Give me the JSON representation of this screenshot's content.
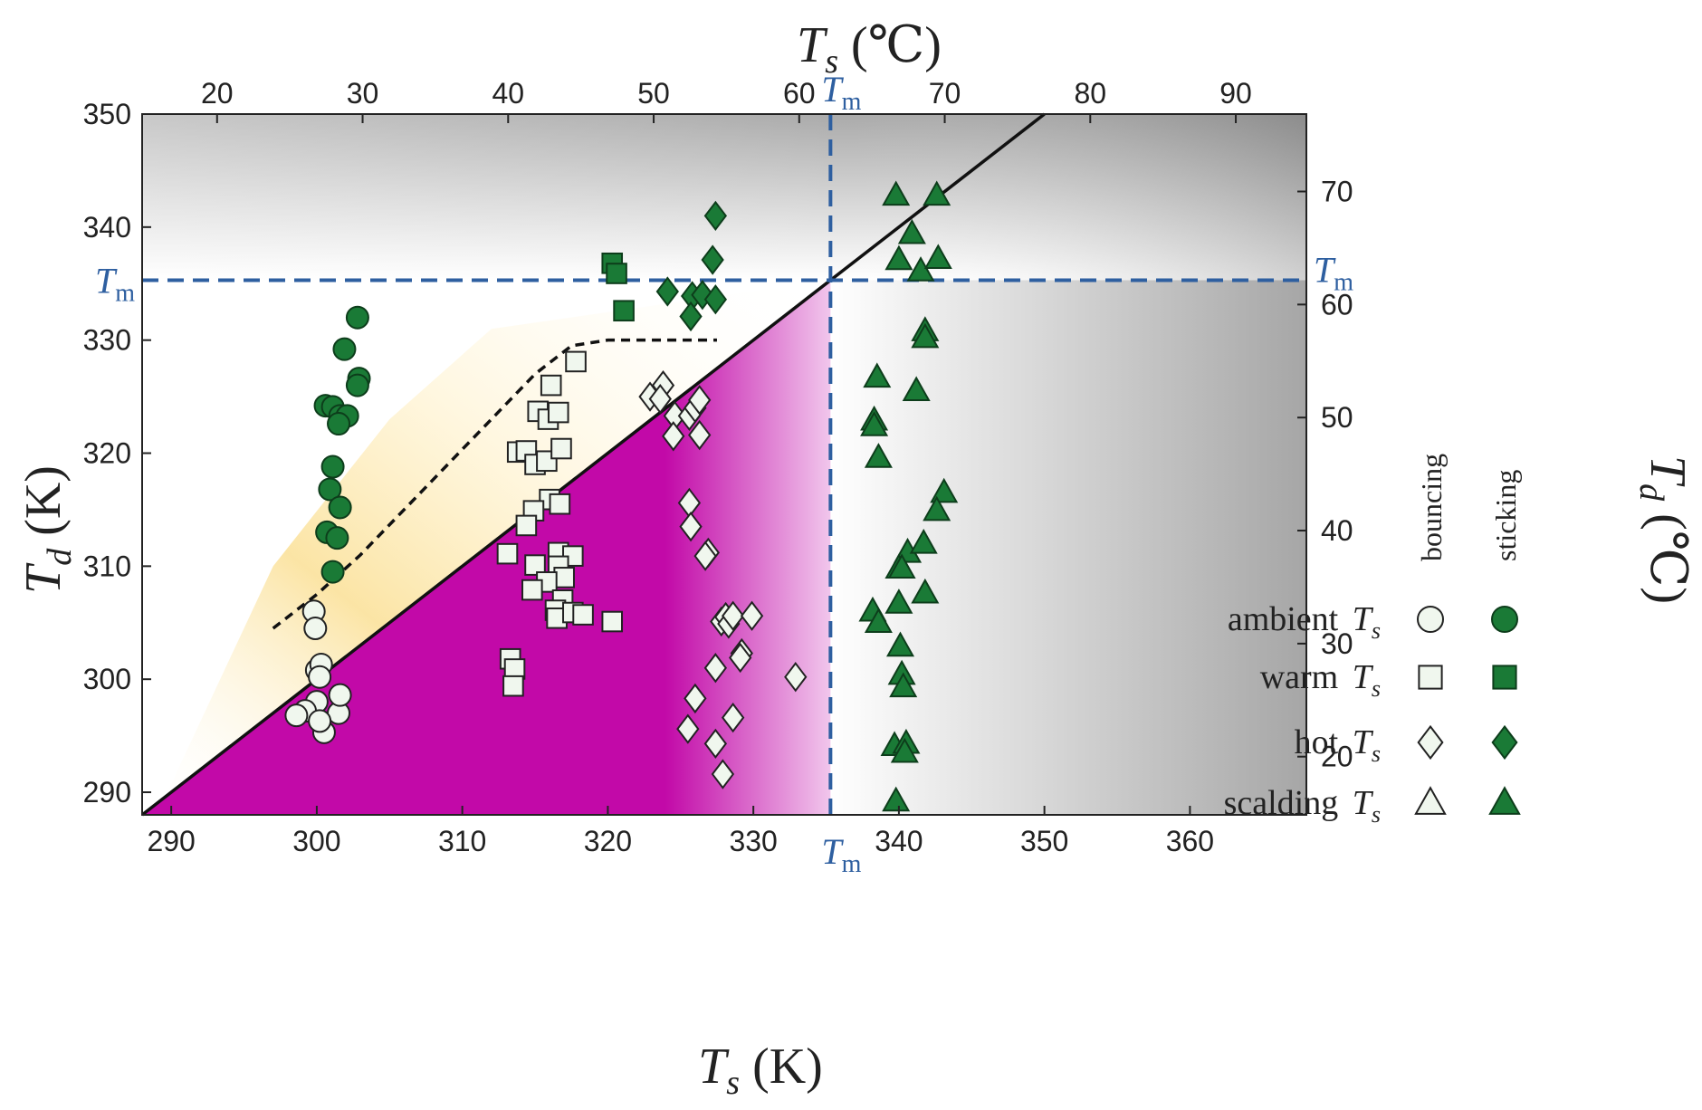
{
  "chart_data": {
    "type": "scatter",
    "axes": {
      "x_bottom": {
        "label_symbol": "T",
        "label_sub": "s",
        "label_unit": "(K)",
        "lim": [
          288,
          368
        ],
        "ticks": [
          290,
          300,
          310,
          320,
          330,
          340,
          350,
          360
        ]
      },
      "x_top": {
        "label_symbol": "T",
        "label_sub": "s",
        "label_unit": "(℃)",
        "lim": [
          14.85,
          94.85
        ],
        "ticks": [
          20,
          30,
          40,
          50,
          60,
          70,
          80,
          90
        ]
      },
      "y_left": {
        "label_symbol": "T",
        "label_sub": "d",
        "label_unit": "(K)",
        "lim": [
          288,
          350
        ],
        "ticks": [
          290,
          300,
          310,
          320,
          330,
          340,
          350
        ]
      },
      "y_right": {
        "label_symbol": "T",
        "label_sub": "d",
        "label_unit": "(℃)",
        "lim": [
          14.85,
          76.85
        ],
        "ticks": [
          20,
          30,
          40,
          50,
          60,
          70
        ]
      }
    },
    "melting": {
      "value": 335.3,
      "label_main": "T",
      "label_sub": "m"
    },
    "diagonal": {
      "from": [
        288,
        288
      ],
      "to": [
        350,
        350
      ]
    },
    "dashed_curve": [
      [
        297,
        304.5
      ],
      [
        300,
        307.5
      ],
      [
        303,
        311
      ],
      [
        306,
        315
      ],
      [
        309,
        319
      ],
      [
        312,
        323
      ],
      [
        315,
        327
      ],
      [
        317.5,
        329.5
      ],
      [
        320,
        330
      ],
      [
        324,
        330
      ],
      [
        327.5,
        330
      ]
    ],
    "legend": {
      "col_bouncing": "bouncing",
      "col_sticking": "sticking",
      "rows": [
        {
          "label": "ambient",
          "sub": "s",
          "sym": "T",
          "marker": "circle"
        },
        {
          "label": "warm",
          "sub": "s",
          "sym": "T",
          "marker": "square"
        },
        {
          "label": "hot",
          "sub": "s",
          "sym": "T",
          "marker": "diamond"
        },
        {
          "label": "scalding",
          "sub": "s",
          "sym": "T",
          "marker": "triangle"
        }
      ]
    },
    "series": [
      {
        "name": "ambient bouncing",
        "marker": "circle",
        "filled": false,
        "points": [
          [
            299.8,
            306
          ],
          [
            299.9,
            304.5
          ],
          [
            300,
            300.8
          ],
          [
            300.3,
            301.3
          ],
          [
            300.2,
            300.2
          ],
          [
            300,
            298
          ],
          [
            299.2,
            297.2
          ],
          [
            298.6,
            296.8
          ],
          [
            300.5,
            295.3
          ],
          [
            301.5,
            297
          ],
          [
            301.6,
            298.6
          ],
          [
            300.2,
            296.3
          ]
        ]
      },
      {
        "name": "ambient sticking",
        "marker": "circle",
        "filled": true,
        "points": [
          [
            302.8,
            332
          ],
          [
            301.9,
            329.2
          ],
          [
            302.9,
            326.6
          ],
          [
            302.8,
            326
          ],
          [
            300.6,
            324.2
          ],
          [
            301.1,
            324.1
          ],
          [
            301.6,
            323.3
          ],
          [
            302.1,
            323.3
          ],
          [
            301.5,
            322.6
          ],
          [
            301.1,
            318.8
          ],
          [
            300.9,
            316.8
          ],
          [
            301.6,
            315.2
          ],
          [
            300.7,
            313
          ],
          [
            301.4,
            312.5
          ],
          [
            301.1,
            309.5
          ]
        ]
      },
      {
        "name": "warm bouncing",
        "marker": "square",
        "filled": false,
        "points": [
          [
            317.8,
            328.1
          ],
          [
            316.1,
            326
          ],
          [
            315.2,
            323.7
          ],
          [
            315.9,
            323
          ],
          [
            316.6,
            323.6
          ],
          [
            313.8,
            320.1
          ],
          [
            314.4,
            320.2
          ],
          [
            315,
            319
          ],
          [
            315.8,
            319.3
          ],
          [
            316.8,
            320.4
          ],
          [
            316,
            315.9
          ],
          [
            316.7,
            315.5
          ],
          [
            314.9,
            314.9
          ],
          [
            314.4,
            313.6
          ],
          [
            313.1,
            311.1
          ],
          [
            315,
            310.1
          ],
          [
            316.6,
            311.2
          ],
          [
            317.6,
            310.9
          ],
          [
            316.6,
            310
          ],
          [
            317,
            309
          ],
          [
            315.8,
            308.6
          ],
          [
            314.8,
            307.9
          ],
          [
            316.9,
            307
          ],
          [
            316.4,
            306.1
          ],
          [
            316.5,
            305.4
          ],
          [
            317.6,
            305.9
          ],
          [
            318.3,
            305.7
          ],
          [
            320.3,
            305.1
          ],
          [
            313.3,
            301.8
          ],
          [
            313.6,
            300.9
          ],
          [
            313.5,
            299.4
          ]
        ]
      },
      {
        "name": "warm sticking",
        "marker": "square",
        "filled": true,
        "points": [
          [
            320.3,
            336.8
          ],
          [
            320.6,
            335.9
          ],
          [
            321.1,
            332.6
          ]
        ]
      },
      {
        "name": "hot bouncing",
        "marker": "diamond",
        "filled": false,
        "points": [
          [
            322.9,
            325
          ],
          [
            323.8,
            326
          ],
          [
            323.6,
            324.8
          ],
          [
            324.6,
            323.3
          ],
          [
            324.5,
            321.5
          ],
          [
            325.6,
            323.3
          ],
          [
            326,
            324
          ],
          [
            326.3,
            324.7
          ],
          [
            326.3,
            321.6
          ],
          [
            325.6,
            315.6
          ],
          [
            325.7,
            313.5
          ],
          [
            326.9,
            311.2
          ],
          [
            326.7,
            310.9
          ],
          [
            327.8,
            305.1
          ],
          [
            328.1,
            305.5
          ],
          [
            328.3,
            304.9
          ],
          [
            328.6,
            305.6
          ],
          [
            329.9,
            305.6
          ],
          [
            329.2,
            302.3
          ],
          [
            329.1,
            301.9
          ],
          [
            327.4,
            301
          ],
          [
            332.9,
            300.2
          ],
          [
            326,
            298.3
          ],
          [
            325.5,
            295.6
          ],
          [
            327.4,
            294.3
          ],
          [
            328.6,
            296.6
          ],
          [
            327.9,
            291.6
          ]
        ]
      },
      {
        "name": "hot sticking",
        "marker": "diamond",
        "filled": true,
        "points": [
          [
            327.4,
            341
          ],
          [
            327.2,
            337.1
          ],
          [
            324.1,
            334.3
          ],
          [
            325.8,
            333.9
          ],
          [
            326.5,
            334
          ],
          [
            327.4,
            333.6
          ],
          [
            325.7,
            332.1
          ]
        ]
      },
      {
        "name": "scalding sticking",
        "marker": "triangle",
        "filled": true,
        "points": [
          [
            339.8,
            342.8
          ],
          [
            342.6,
            342.8
          ],
          [
            340.9,
            339.4
          ],
          [
            340,
            337.1
          ],
          [
            341.5,
            336.1
          ],
          [
            342.7,
            337.2
          ],
          [
            341.8,
            330.8
          ],
          [
            341.8,
            330.2
          ],
          [
            338.5,
            326.7
          ],
          [
            341.2,
            325.5
          ],
          [
            338.3,
            322.9
          ],
          [
            338.3,
            322.4
          ],
          [
            338.6,
            319.6
          ],
          [
            343.1,
            316.5
          ],
          [
            342.6,
            314.9
          ],
          [
            340.6,
            311.2
          ],
          [
            341.7,
            312
          ],
          [
            340,
            309.8
          ],
          [
            340.2,
            309.8
          ],
          [
            341.8,
            307.6
          ],
          [
            340,
            306.7
          ],
          [
            338.2,
            306
          ],
          [
            338.6,
            305
          ],
          [
            340.1,
            302.9
          ],
          [
            340.2,
            300.4
          ],
          [
            340.3,
            299.3
          ],
          [
            339.7,
            294.1
          ],
          [
            340.5,
            294.3
          ],
          [
            340.4,
            293.5
          ],
          [
            339.8,
            289.2
          ]
        ]
      }
    ]
  }
}
